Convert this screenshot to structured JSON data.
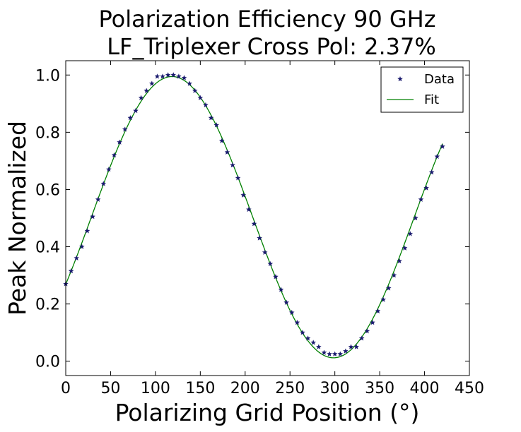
{
  "chart_data": {
    "type": "scatter",
    "title": "Polarization Efficiency 90 GHz",
    "subtitle": "LF_Triplexer Cross Pol: 2.37%",
    "xlabel": "Polarizing Grid Position (°)",
    "ylabel": "Peak Normalized",
    "xlim": [
      0,
      450
    ],
    "ylim": [
      -0.05,
      1.05
    ],
    "xticks": [
      "0",
      "50",
      "100",
      "150",
      "200",
      "250",
      "300",
      "350",
      "400",
      "450"
    ],
    "yticks": [
      "0.0",
      "0.2",
      "0.4",
      "0.6",
      "0.8",
      "1.0"
    ],
    "grid": false,
    "legend_position": "top-right",
    "series": [
      {
        "name": "Data",
        "kind": "scatter",
        "marker": "star",
        "color": "#1a1a6e",
        "x": [
          0,
          6,
          12,
          18,
          24,
          30,
          36,
          42,
          48,
          54,
          60,
          66,
          72,
          78,
          84,
          90,
          96,
          102,
          108,
          114,
          120,
          126,
          132,
          138,
          144,
          150,
          156,
          162,
          168,
          174,
          180,
          186,
          192,
          198,
          204,
          210,
          216,
          222,
          228,
          234,
          240,
          246,
          252,
          258,
          264,
          270,
          276,
          282,
          288,
          294,
          300,
          306,
          312,
          318,
          324,
          330,
          336,
          342,
          348,
          354,
          360,
          366,
          372,
          378,
          384,
          390,
          396,
          402,
          408,
          414,
          420
        ],
        "y": [
          0.27,
          0.315,
          0.36,
          0.4,
          0.455,
          0.505,
          0.565,
          0.62,
          0.67,
          0.72,
          0.765,
          0.81,
          0.85,
          0.875,
          0.92,
          0.945,
          0.97,
          0.995,
          0.995,
          1.0,
          1.0,
          0.995,
          0.99,
          0.97,
          0.945,
          0.92,
          0.895,
          0.85,
          0.825,
          0.77,
          0.73,
          0.685,
          0.64,
          0.58,
          0.53,
          0.48,
          0.43,
          0.38,
          0.34,
          0.295,
          0.25,
          0.205,
          0.17,
          0.135,
          0.1,
          0.08,
          0.065,
          0.05,
          0.03,
          0.025,
          0.025,
          0.025,
          0.035,
          0.05,
          0.05,
          0.08,
          0.105,
          0.135,
          0.175,
          0.215,
          0.255,
          0.3,
          0.35,
          0.395,
          0.445,
          0.5,
          0.565,
          0.605,
          0.66,
          0.715,
          0.75
        ]
      },
      {
        "name": "Fit",
        "kind": "line",
        "color": "#008000",
        "model": {
          "offset": 0.5033,
          "amplitude": 0.4914,
          "period_deg": 360,
          "peak_x": 118.5
        },
        "x_range": [
          0,
          420
        ]
      }
    ]
  }
}
